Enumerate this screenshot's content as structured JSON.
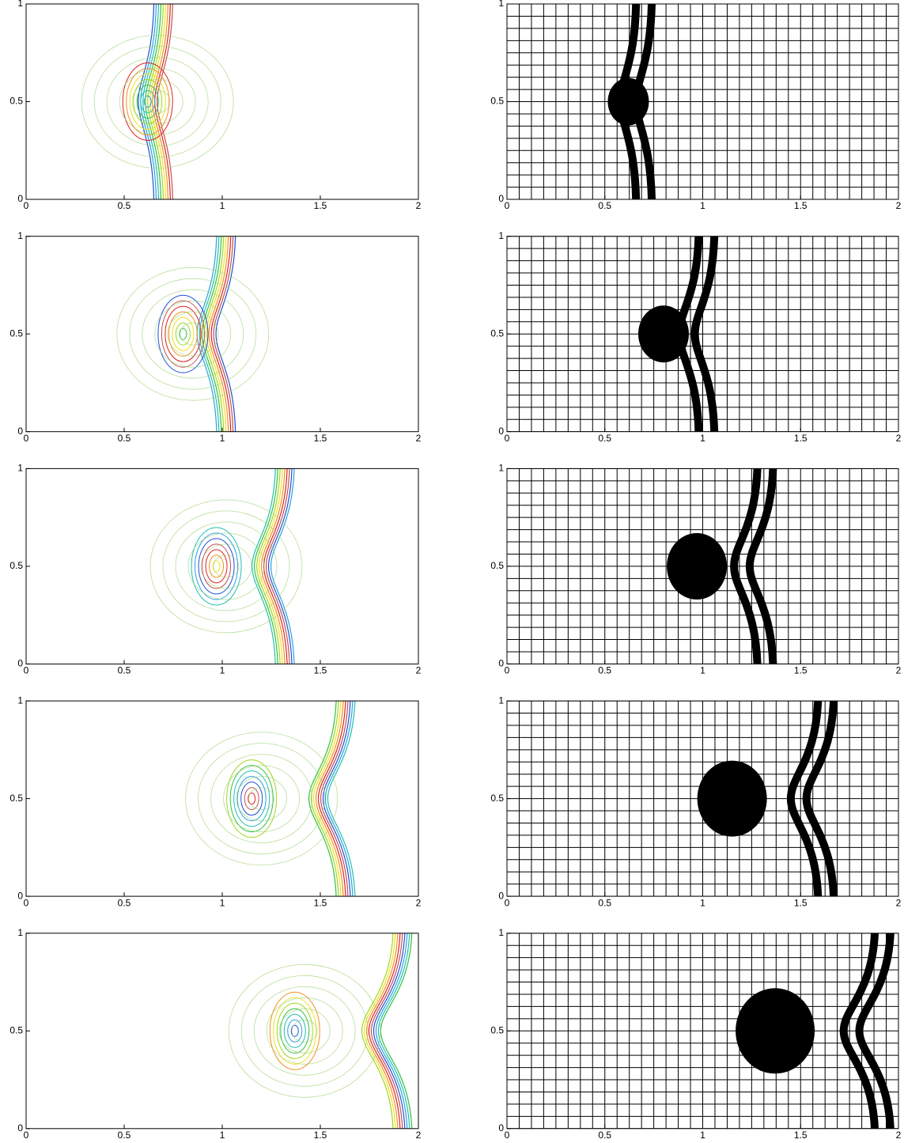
{
  "chart_data": [
    {
      "type": "contour",
      "xlim": [
        0,
        2
      ],
      "ylim": [
        0,
        1
      ],
      "xticks": [
        0,
        0.5,
        1,
        1.5,
        2
      ],
      "yticks": [
        0,
        0.5,
        1
      ]
    },
    {
      "type": "mesh",
      "xlim": [
        0,
        2
      ],
      "ylim": [
        0,
        1
      ],
      "xticks": [
        0,
        0.5,
        1,
        1.5,
        2
      ],
      "yticks": [
        0,
        0.5,
        1
      ]
    },
    {
      "type": "contour",
      "xlim": [
        0,
        2
      ],
      "ylim": [
        0,
        1
      ],
      "xticks": [
        0,
        0.5,
        1,
        1.5,
        2
      ],
      "yticks": [
        0,
        0.5,
        1
      ]
    },
    {
      "type": "mesh",
      "xlim": [
        0,
        2
      ],
      "ylim": [
        0,
        1
      ],
      "xticks": [
        0,
        0.5,
        1,
        1.5,
        2
      ],
      "yticks": [
        0,
        0.5,
        1
      ]
    },
    {
      "type": "contour",
      "xlim": [
        0,
        2
      ],
      "ylim": [
        0,
        1
      ],
      "xticks": [
        0,
        0.5,
        1,
        1.5,
        2
      ],
      "yticks": [
        0,
        0.5,
        1
      ]
    },
    {
      "type": "mesh",
      "xlim": [
        0,
        2
      ],
      "ylim": [
        0,
        1
      ],
      "xticks": [
        0,
        0.5,
        1,
        1.5,
        2
      ],
      "yticks": [
        0,
        0.5,
        1
      ]
    },
    {
      "type": "contour",
      "xlim": [
        0,
        2
      ],
      "ylim": [
        0,
        1
      ],
      "xticks": [
        0,
        0.5,
        1,
        1.5,
        2
      ],
      "yticks": [
        0,
        0.5,
        1
      ]
    },
    {
      "type": "mesh",
      "xlim": [
        0,
        2
      ],
      "ylim": [
        0,
        1
      ],
      "xticks": [
        0,
        0.5,
        1,
        1.5,
        2
      ],
      "yticks": [
        0,
        0.5,
        1
      ]
    },
    {
      "type": "contour",
      "xlim": [
        0,
        2
      ],
      "ylim": [
        0,
        1
      ],
      "xticks": [
        0,
        0.5,
        1,
        1.5,
        2
      ],
      "yticks": [
        0,
        0.5,
        1
      ]
    },
    {
      "type": "mesh",
      "xlim": [
        0,
        2
      ],
      "ylim": [
        0,
        1
      ],
      "xticks": [
        0,
        0.5,
        1,
        1.5,
        2
      ],
      "yticks": [
        0,
        0.5,
        1
      ]
    }
  ]
}
